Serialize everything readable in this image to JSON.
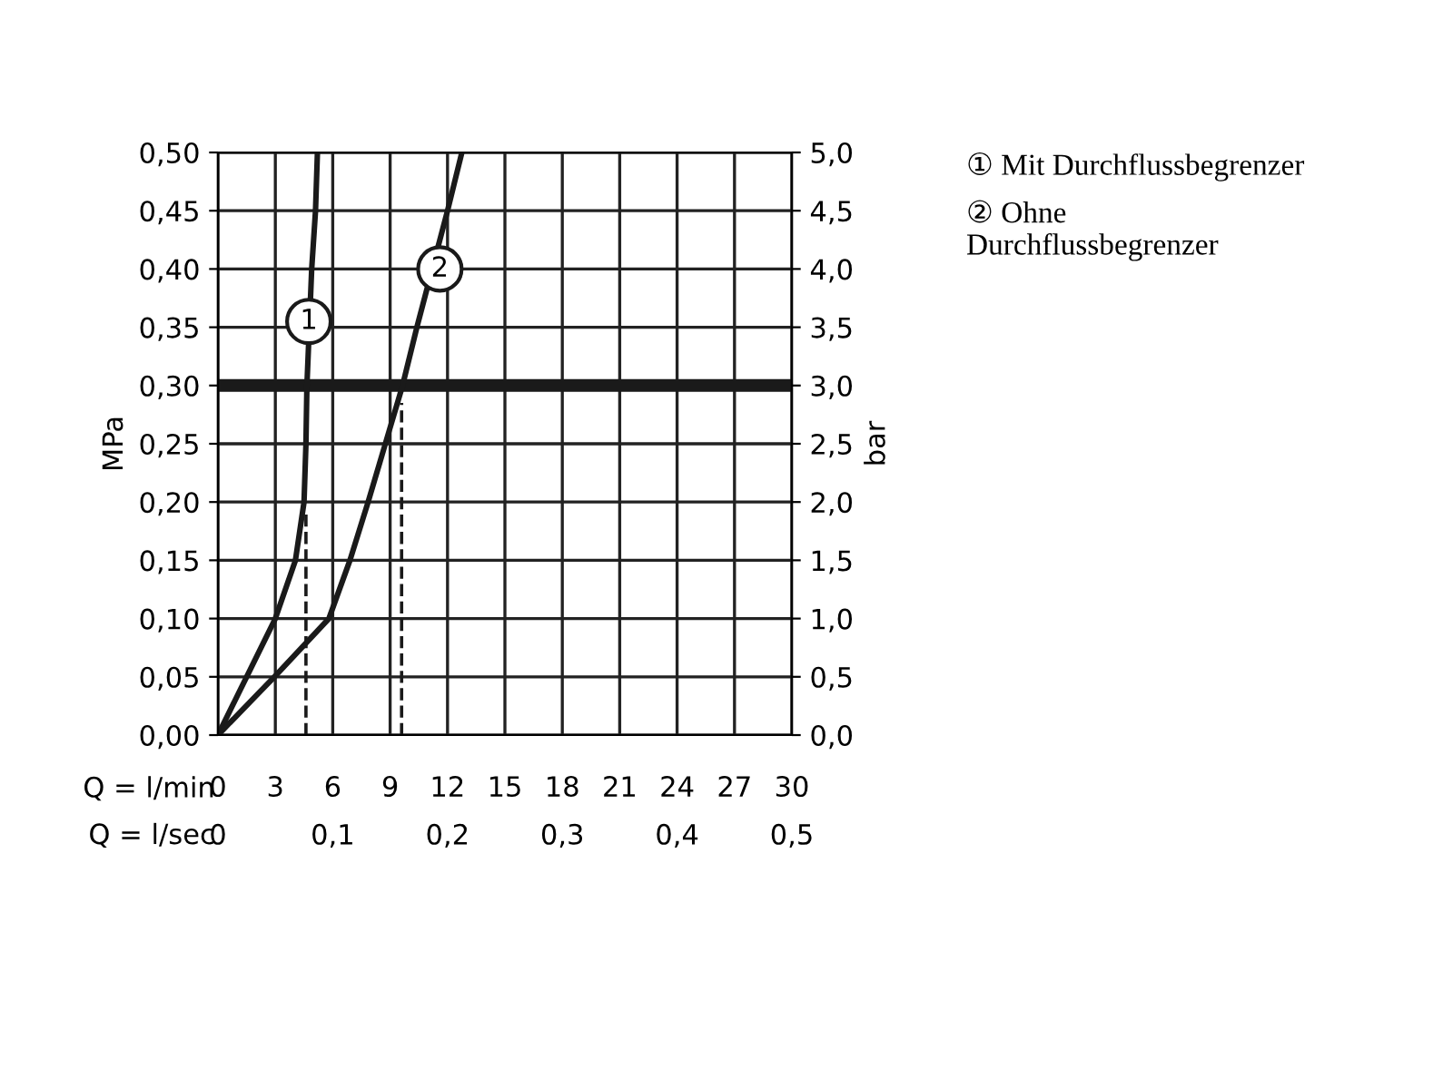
{
  "chart_data": {
    "type": "line",
    "xlabel": "Q = l/min",
    "x2label": "Q = l/sec",
    "ylabel": "MPa",
    "y2label": "bar",
    "series": [
      {
        "color": "#1a1a1a",
        "x": [
          0,
          1.5,
          3.0,
          4.05,
          4.5,
          4.6,
          4.65,
          4.9,
          5.1,
          5.2
        ],
        "values": [
          0,
          0.05,
          0.1,
          0.15,
          0.2,
          0.25,
          0.3,
          0.4,
          0.45,
          0.5
        ]
      },
      {
        "color": "#1a1a1a",
        "x": [
          0,
          2.95,
          5.8,
          6.9,
          7.85,
          8.75,
          9.65,
          10.4,
          12.0,
          12.75
        ],
        "values": [
          0,
          0.05,
          0.1,
          0.15,
          0.2,
          0.25,
          0.3,
          0.35,
          0.45,
          0.5
        ]
      }
    ],
    "xlim": [
      0,
      30
    ],
    "xticks": [
      0,
      3,
      6,
      9,
      12,
      15,
      18,
      21,
      24,
      27,
      30
    ],
    "x2lim": [
      0,
      0.5
    ],
    "x2ticks": [
      0,
      {
        "value": 0.1,
        "label": "0,1"
      },
      {
        "value": 0.2,
        "label": "0,2"
      },
      {
        "value": 0.3,
        "label": "0,3"
      },
      {
        "value": 0.4,
        "label": "0,4"
      },
      {
        "value": 0.5,
        "label": "0,5"
      }
    ],
    "ylim": [
      0,
      0.5
    ],
    "yticks": [
      {
        "value": 0,
        "label": "0,00"
      },
      {
        "value": 0.05,
        "label": "0,05"
      },
      {
        "value": 0.1,
        "label": "0,10"
      },
      {
        "value": 0.15,
        "label": "0,15"
      },
      {
        "value": 0.2,
        "label": "0,20"
      },
      {
        "value": 0.25,
        "label": "0,25"
      },
      {
        "value": 0.3,
        "label": "0,30"
      },
      {
        "value": 0.35,
        "label": "0,35"
      },
      {
        "value": 0.4,
        "label": "0,40"
      },
      {
        "value": 0.45,
        "label": "0,45"
      },
      {
        "value": 0.5,
        "label": "0,50"
      }
    ],
    "y2lim": [
      0,
      5
    ],
    "y2ticks": [
      {
        "value": 0,
        "label": "0,0"
      },
      {
        "value": 0.5,
        "label": "0,5"
      },
      {
        "value": 1,
        "label": "1,0"
      },
      {
        "value": 1.5,
        "label": "1,5"
      },
      {
        "value": 2,
        "label": "2,0"
      },
      {
        "value": 2.5,
        "label": "2,5"
      },
      {
        "value": 3,
        "label": "3,0"
      },
      {
        "value": 3.5,
        "label": "3,5"
      },
      {
        "value": 4,
        "label": "4,0"
      },
      {
        "value": 4.5,
        "label": "4,5"
      },
      {
        "value": 5,
        "label": "5,0"
      }
    ],
    "ref_lines": [
      {
        "axis": "y",
        "value": 0.3,
        "color": "#1a1a1a",
        "line_style": "solid"
      },
      {
        "axis": "x",
        "value": 4.6,
        "color": "#1a1a1a",
        "line_style": "dashed"
      },
      {
        "axis": "x",
        "value": 9.6,
        "color": "#1a1a1a",
        "line_style": "dashed"
      }
    ],
    "annotations": [
      {
        "text": "1",
        "x": 4.75,
        "y": 0.355
      },
      {
        "text": "2",
        "x": 11.6,
        "y": 0.4
      },
      "① Mit Durchflussbegrenzer",
      "② Ohne\nDurchflussbegrenzer"
    ],
    "grid": true,
    "marker": "none",
    "line_style": "solid"
  }
}
